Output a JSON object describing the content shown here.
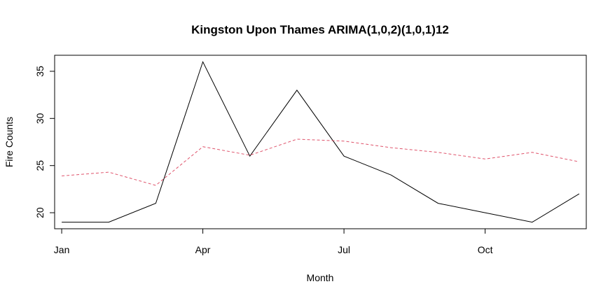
{
  "chart_data": {
    "type": "line",
    "title": "Kingston Upon Thames ARIMA(1,0,2)(1,0,1)12",
    "xlabel": "Month",
    "ylabel": "Fire Counts",
    "x": [
      1,
      2,
      3,
      4,
      5,
      6,
      7,
      8,
      9,
      10,
      11,
      12
    ],
    "x_ticks": [
      1,
      4,
      7,
      10
    ],
    "x_tick_labels": [
      "Jan",
      "Apr",
      "Jul",
      "Oct"
    ],
    "y_ticks": [
      20,
      25,
      30,
      35
    ],
    "y_tick_labels": [
      "20",
      "25",
      "30",
      "35"
    ],
    "xlim": [
      0.85,
      12.15
    ],
    "ylim": [
      18.3,
      36.7
    ],
    "grid": false,
    "series": [
      {
        "style": "solid",
        "color": "#000000",
        "values": [
          19,
          19,
          21,
          36,
          26,
          33,
          26,
          24,
          21,
          20,
          19,
          22
        ]
      },
      {
        "style": "dashed",
        "color": "#DF536B",
        "values": [
          23.9,
          24.3,
          22.9,
          27.0,
          26.1,
          27.8,
          27.6,
          26.9,
          26.4,
          25.7,
          26.4,
          25.4
        ]
      }
    ]
  }
}
